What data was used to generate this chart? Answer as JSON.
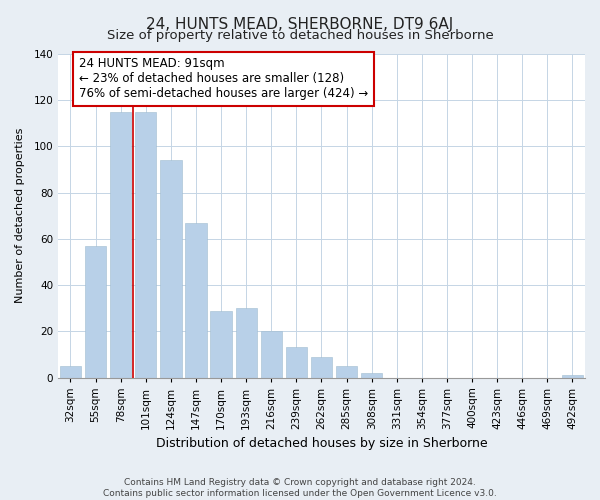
{
  "title": "24, HUNTS MEAD, SHERBORNE, DT9 6AJ",
  "subtitle": "Size of property relative to detached houses in Sherborne",
  "xlabel": "Distribution of detached houses by size in Sherborne",
  "ylabel": "Number of detached properties",
  "categories": [
    "32sqm",
    "55sqm",
    "78sqm",
    "101sqm",
    "124sqm",
    "147sqm",
    "170sqm",
    "193sqm",
    "216sqm",
    "239sqm",
    "262sqm",
    "285sqm",
    "308sqm",
    "331sqm",
    "354sqm",
    "377sqm",
    "400sqm",
    "423sqm",
    "446sqm",
    "469sqm",
    "492sqm"
  ],
  "values": [
    5,
    57,
    115,
    115,
    94,
    67,
    29,
    30,
    20,
    13,
    9,
    5,
    2,
    0,
    0,
    0,
    0,
    0,
    0,
    0,
    1
  ],
  "bar_color": "#b8d0e8",
  "marker_line_color": "#cc0000",
  "annotation_line1": "24 HUNTS MEAD: 91sqm",
  "annotation_line2": "← 23% of detached houses are smaller (128)",
  "annotation_line3": "76% of semi-detached houses are larger (424) →",
  "annotation_box_facecolor": "#ffffff",
  "annotation_box_edgecolor": "#cc0000",
  "ylim": [
    0,
    140
  ],
  "yticks": [
    0,
    20,
    40,
    60,
    80,
    100,
    120,
    140
  ],
  "footer_text": "Contains HM Land Registry data © Crown copyright and database right 2024.\nContains public sector information licensed under the Open Government Licence v3.0.",
  "background_color": "#e8eef4",
  "plot_background_color": "#ffffff",
  "title_fontsize": 11,
  "subtitle_fontsize": 9.5,
  "xlabel_fontsize": 9,
  "ylabel_fontsize": 8,
  "tick_fontsize": 7.5,
  "annotation_fontsize": 8.5,
  "footer_fontsize": 6.5,
  "grid_color": "#c5d5e5"
}
